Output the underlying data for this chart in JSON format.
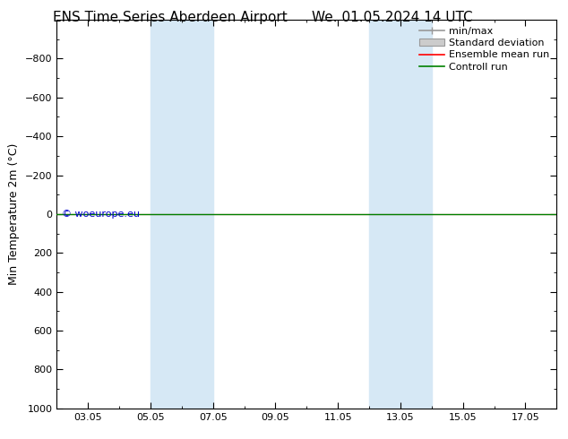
{
  "title_left": "ENS Time Series Aberdeen Airport",
  "title_right": "We. 01.05.2024 14 UTC",
  "ylabel": "Min Temperature 2m (°C)",
  "ylim_top": -1000,
  "ylim_bottom": 1000,
  "yticks": [
    -800,
    -600,
    -400,
    -200,
    0,
    200,
    400,
    600,
    800,
    1000
  ],
  "xtick_labels": [
    "03.05",
    "05.05",
    "07.05",
    "09.05",
    "11.05",
    "13.05",
    "15.05",
    "17.05"
  ],
  "xtick_positions": [
    2,
    4,
    6,
    8,
    10,
    12,
    14,
    16
  ],
  "x_min": 1,
  "x_max": 17,
  "shaded_bands": [
    {
      "x_start": 4,
      "x_end": 6
    },
    {
      "x_start": 11,
      "x_end": 13
    }
  ],
  "shaded_color": "#d6e8f5",
  "control_run_y": 0.0,
  "ensemble_mean_y": 0.0,
  "control_run_color": "#008000",
  "ensemble_mean_color": "#ff0000",
  "minmax_color": "#999999",
  "stddev_color": "#cccccc",
  "stddev_edge_color": "#999999",
  "watermark": "© woeurope.eu",
  "watermark_color": "#0000cc",
  "legend_entries": [
    "min/max",
    "Standard deviation",
    "Ensemble mean run",
    "Controll run"
  ],
  "legend_colors": [
    "#999999",
    "#cccccc",
    "#ff0000",
    "#008000"
  ],
  "background_color": "#ffffff",
  "plot_bg_color": "#ffffff",
  "border_color": "#000000",
  "title_fontsize": 11,
  "axis_fontsize": 9,
  "tick_fontsize": 8,
  "legend_fontsize": 8
}
